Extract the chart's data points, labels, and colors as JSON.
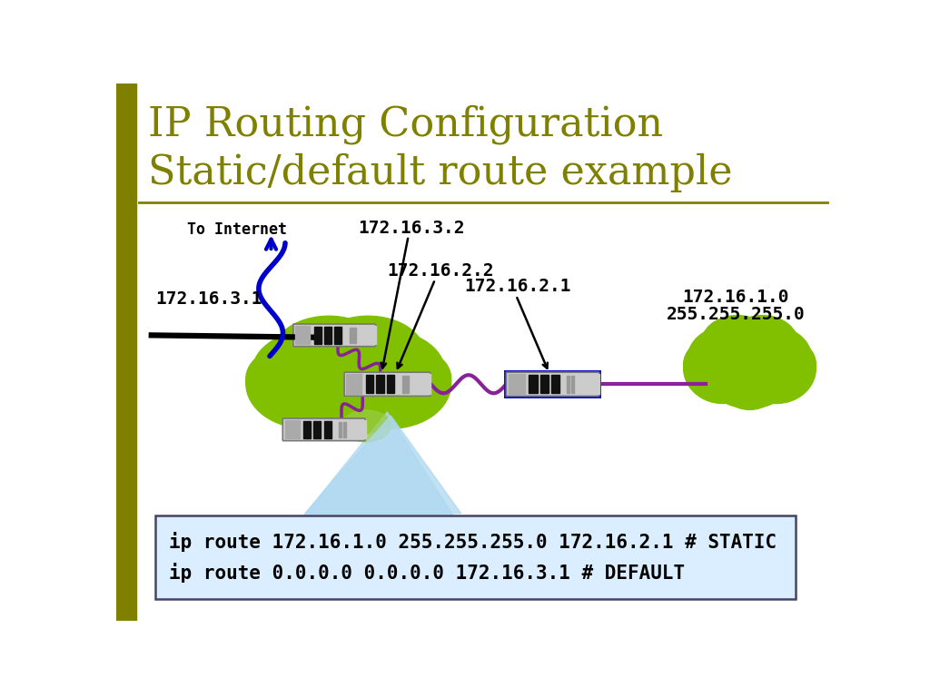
{
  "title_line1": "IP Routing Configuration",
  "title_line2": "Static/default route example",
  "title_color": "#808000",
  "title_fontsize": 32,
  "bg_color": "#ffffff",
  "left_bar_color": "#808000",
  "separator_color": "#808000",
  "ip_172_16_3_2": "172.16.3.2",
  "ip_172_16_2_2": "172.16.2.2",
  "ip_172_16_2_1": "172.16.2.1",
  "ip_172_16_3_1": "172.16.3.1",
  "ip_172_16_1_0": "172.16.1.0",
  "ip_255_255_255_0": "255.255.255.0",
  "label_to_internet": "To Internet",
  "cmd_line1": "ip route 172.16.1.0 255.255.255.0 172.16.2.1 # STATIC",
  "cmd_line2": "ip route 0.0.0.0 0.0.0.0 172.16.3.1 # DEFAULT",
  "cloud_color": "#80c000",
  "right_cloud_color": "#80c000",
  "cmd_bg": "#daeeff",
  "cmd_border": "#555577",
  "purple_line_color": "#882299",
  "blue_color": "#0000cc",
  "router_border_color": "#1111cc",
  "router_fill": "#cccccc",
  "router_stripe": "#333333",
  "router_light1": "#888888",
  "router_light2": "#bbbbbb"
}
